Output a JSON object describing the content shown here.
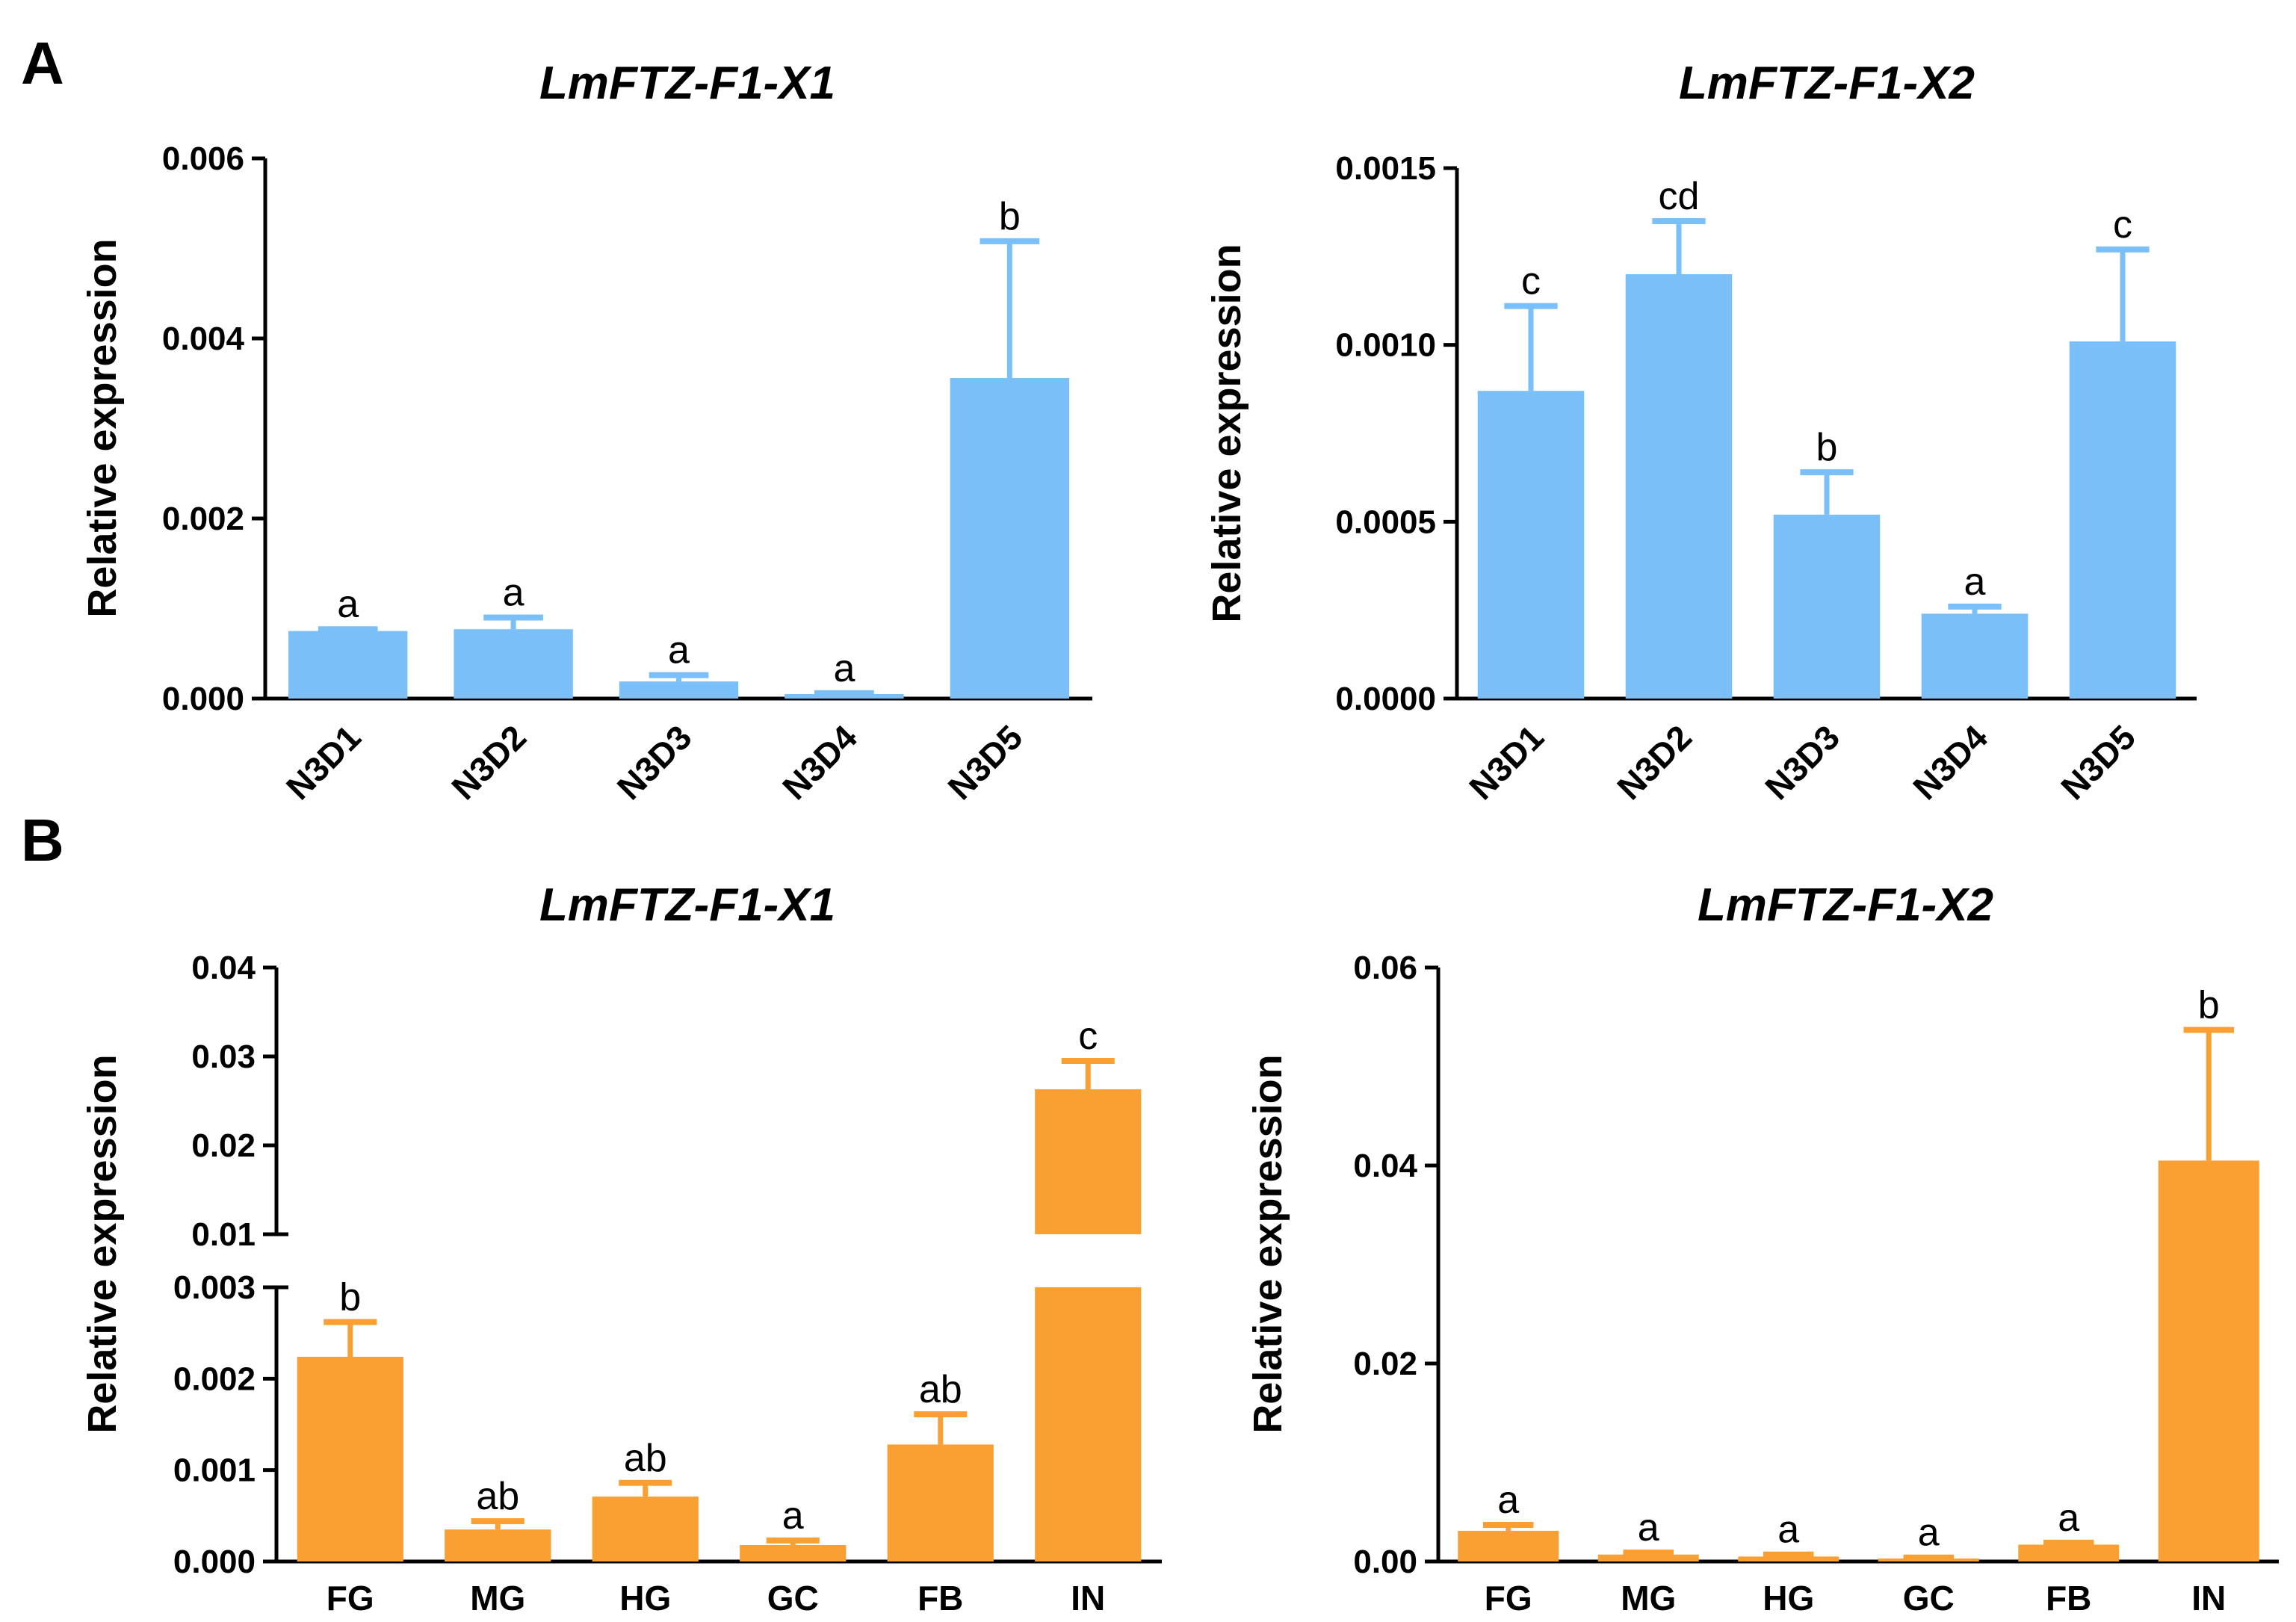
{
  "panel_labels": [
    "A",
    "B"
  ],
  "colors": {
    "blue": "#7ABFF8",
    "orange": "#FAA033",
    "axis": "#000000"
  },
  "chart_data": [
    {
      "type": "bar",
      "title": "LmFTZ-F1-X1",
      "ylabel": "Relative expression",
      "categories": [
        "N3D1",
        "N3D2",
        "N3D3",
        "N3D4",
        "N3D5"
      ],
      "values": [
        0.00075,
        0.00077,
        0.00019,
        5e-05,
        0.00356
      ],
      "errors": [
        2e-05,
        0.00013,
        7e-05,
        1e-05,
        0.00152
      ],
      "significance": [
        "a",
        "a",
        "a",
        "a",
        "b"
      ],
      "ylim": [
        0,
        0.006
      ],
      "yticks": [
        "0.000",
        "0.002",
        "0.004",
        "0.006"
      ],
      "color": "#7ABFF8"
    },
    {
      "type": "bar",
      "title": "LmFTZ-F1-X2",
      "ylabel": "Relative expression",
      "categories": [
        "N3D1",
        "N3D2",
        "N3D3",
        "N3D4",
        "N3D5"
      ],
      "values": [
        0.00087,
        0.0012,
        0.00052,
        0.00024,
        0.00101
      ],
      "errors": [
        0.00024,
        0.00015,
        0.00012,
        2e-05,
        0.00026
      ],
      "significance": [
        "c",
        "cd",
        "b",
        "a",
        "c"
      ],
      "ylim": [
        0,
        0.0015
      ],
      "yticks": [
        "0.0000",
        "0.0005",
        "0.0010",
        "0.0015"
      ],
      "color": "#7ABFF8"
    },
    {
      "type": "bar",
      "title": "LmFTZ-F1-X1",
      "ylabel": "Relative expression",
      "categories": [
        "FG",
        "MG",
        "HG",
        "GC",
        "FB",
        "IN"
      ],
      "values": [
        0.00224,
        0.00035,
        0.00071,
        0.00018,
        0.00128,
        0.0263
      ],
      "errors": [
        0.00038,
        9e-05,
        0.00015,
        5e-05,
        0.00033,
        0.0032
      ],
      "significance": [
        "b",
        "ab",
        "ab",
        "a",
        "ab",
        "c"
      ],
      "axis_break": {
        "lower": [
          0,
          0.003
        ],
        "upper": [
          0.01,
          0.04
        ]
      },
      "yticks_lower": [
        "0.000",
        "0.001",
        "0.002",
        "0.003"
      ],
      "yticks_upper": [
        "0.01",
        "0.02",
        "0.03",
        "0.04"
      ],
      "color": "#FAA033"
    },
    {
      "type": "bar",
      "title": "LmFTZ-F1-X2",
      "ylabel": "Relative expression",
      "categories": [
        "FG",
        "MG",
        "HG",
        "GC",
        "FB",
        "IN"
      ],
      "values": [
        0.0031,
        0.0007,
        0.0005,
        0.0003,
        0.0017,
        0.0405
      ],
      "errors": [
        0.0006,
        0.0002,
        0.0002,
        0.0001,
        0.0002,
        0.0132
      ],
      "significance": [
        "a",
        "a",
        "a",
        "a",
        "a",
        "b"
      ],
      "ylim": [
        0,
        0.06
      ],
      "yticks": [
        "0.00",
        "0.02",
        "0.04",
        "0.06"
      ],
      "color": "#FAA033"
    }
  ]
}
